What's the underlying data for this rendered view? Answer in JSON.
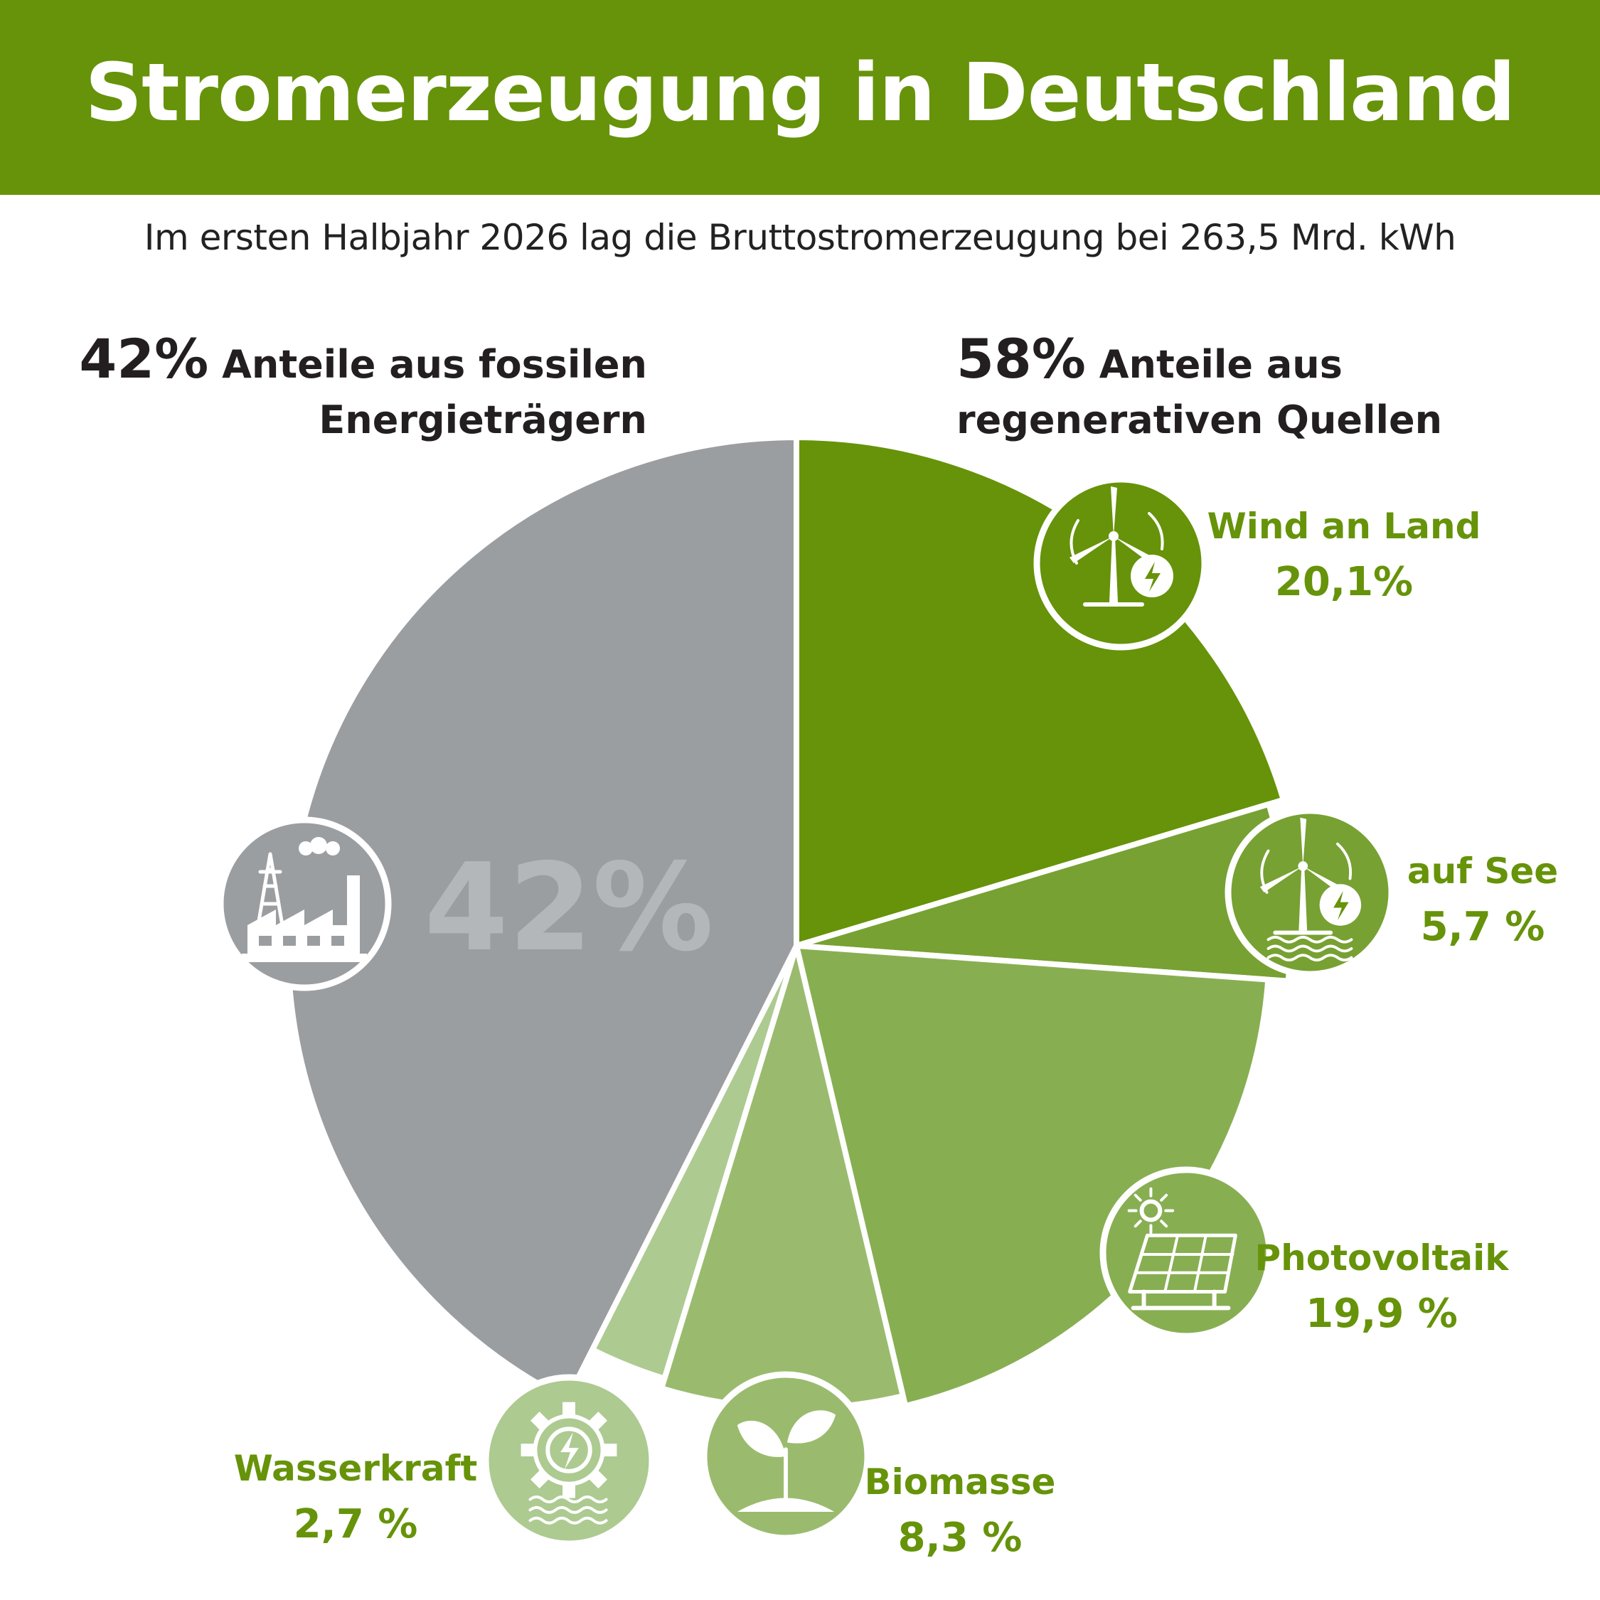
{
  "header": {
    "title": "Stromerzeugung in Deutschland"
  },
  "subtitle": "Im ersten Halbjahr 2026 lag die Bruttostromerzeugung bei 263,5 Mrd. kWh",
  "groups": {
    "fossil": {
      "percent": "42%",
      "text_line1": "Anteile aus fossilen",
      "text_line2": "Energieträgern"
    },
    "renewable": {
      "percent": "58%",
      "text_line1": "Anteile aus",
      "text_line2": "regenerativen Quellen"
    }
  },
  "chart_data": {
    "type": "pie",
    "title": "Stromerzeugung in Deutschland",
    "center_label": "42%",
    "slices": [
      {
        "name": "Wind an Land",
        "value": 20.1,
        "label": "20,1%",
        "color": "#669309",
        "icon": "wind-turbine-icon"
      },
      {
        "name": "auf See",
        "value": 5.7,
        "label": "5,7 %",
        "color": "#77a132",
        "icon": "offshore-wind-icon"
      },
      {
        "name": "Photovoltaik",
        "value": 19.9,
        "label": "19,9 %",
        "color": "#88ae52",
        "icon": "solar-panel-icon"
      },
      {
        "name": "Biomasse",
        "value": 8.3,
        "label": "8,3 %",
        "color": "#9abb6e",
        "icon": "plant-icon"
      },
      {
        "name": "Wasserkraft",
        "value": 2.7,
        "label": "2,7 %",
        "color": "#adca91",
        "icon": "hydro-gear-icon"
      },
      {
        "name": "",
        "value": 42,
        "label": "42%",
        "color": "#9b9ea1",
        "icon": "factory-icon"
      }
    ]
  }
}
